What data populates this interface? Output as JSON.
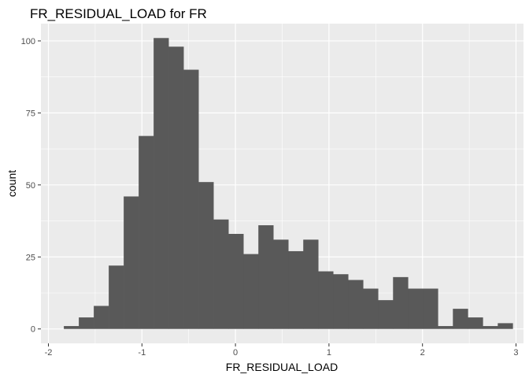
{
  "chart_data": {
    "type": "histogram",
    "title": "FR_RESIDUAL_LOAD  for FR",
    "xlabel": "FR_RESIDUAL_LOAD",
    "ylabel": "count",
    "xlim": [
      -2.08,
      3.08
    ],
    "ylim": [
      -5,
      106
    ],
    "x_ticks": [
      -2,
      -1,
      0,
      1,
      2,
      3
    ],
    "x_tick_labels": [
      "-2",
      "-1",
      "0",
      "1",
      "2",
      "3"
    ],
    "y_ticks": [
      0,
      25,
      50,
      75,
      100
    ],
    "y_tick_labels": [
      "0",
      "25",
      "50",
      "75",
      "100"
    ],
    "bin_start": -1.835,
    "bin_width": 0.16,
    "counts": [
      1,
      4,
      8,
      22,
      46,
      67,
      101,
      98,
      90,
      51,
      38,
      33,
      26,
      36,
      31,
      27,
      31,
      20,
      19,
      17,
      14,
      10,
      18,
      14,
      14,
      1,
      7,
      4,
      1,
      2
    ],
    "bar_color": "#595959",
    "panel_color": "#ebebeb",
    "grid_color": "#ffffff",
    "grid": true
  }
}
